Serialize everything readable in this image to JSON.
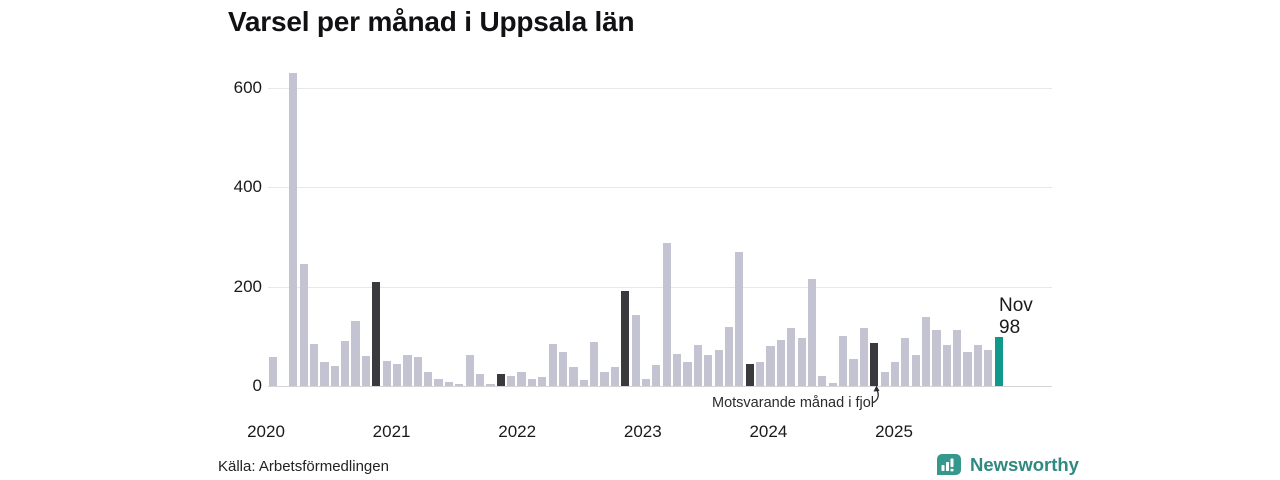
{
  "title": "Varsel per månad i Uppsala län",
  "source": "Källa: Arbetsförmedlingen",
  "branding": {
    "name": "Newsworthy"
  },
  "annotation": {
    "text": "Motsvarande månad i fjol",
    "points_to": "2024-11"
  },
  "latest_label": {
    "line1": "Nov",
    "line2": "98"
  },
  "colors": {
    "bar_normal": "#c4c3d2",
    "bar_november": "#3a3a3e",
    "bar_accent": "#10998a",
    "grid": "#e8e8ea",
    "baseline": "#d4d4d7",
    "text": "#1a1a1a",
    "logo_teal": "#35988c"
  },
  "chart_data": {
    "type": "bar",
    "title": "Varsel per månad i Uppsala län",
    "xlabel": "",
    "ylabel": "",
    "start_month": "2020-01",
    "end_month": "2025-11",
    "x_tick_labels": [
      "2020",
      "2021",
      "2022",
      "2023",
      "2024",
      "2025"
    ],
    "y_ticks": [
      0,
      200,
      400,
      600
    ],
    "ylim": [
      0,
      650
    ],
    "grid": true,
    "values": [
      58,
      0,
      630,
      245,
      85,
      48,
      40,
      90,
      130,
      60,
      210,
      50,
      45,
      62,
      58,
      28,
      15,
      8,
      5,
      62,
      25,
      5,
      24,
      20,
      28,
      15,
      18,
      85,
      68,
      38,
      12,
      88,
      28,
      38,
      190,
      142,
      15,
      43,
      287,
      65,
      48,
      82,
      63,
      72,
      118,
      270,
      45,
      48,
      80,
      93,
      117,
      96,
      215,
      20,
      6,
      100,
      54,
      117,
      87,
      28,
      48,
      97,
      62,
      138,
      112,
      83,
      112,
      68,
      83,
      72,
      98
    ],
    "highlight_rule": "November of each year drawn dark; final bar (Nov 2025, value 98) drawn teal",
    "november_indices": [
      10,
      22,
      34,
      46,
      58
    ],
    "accent_index": 70
  }
}
